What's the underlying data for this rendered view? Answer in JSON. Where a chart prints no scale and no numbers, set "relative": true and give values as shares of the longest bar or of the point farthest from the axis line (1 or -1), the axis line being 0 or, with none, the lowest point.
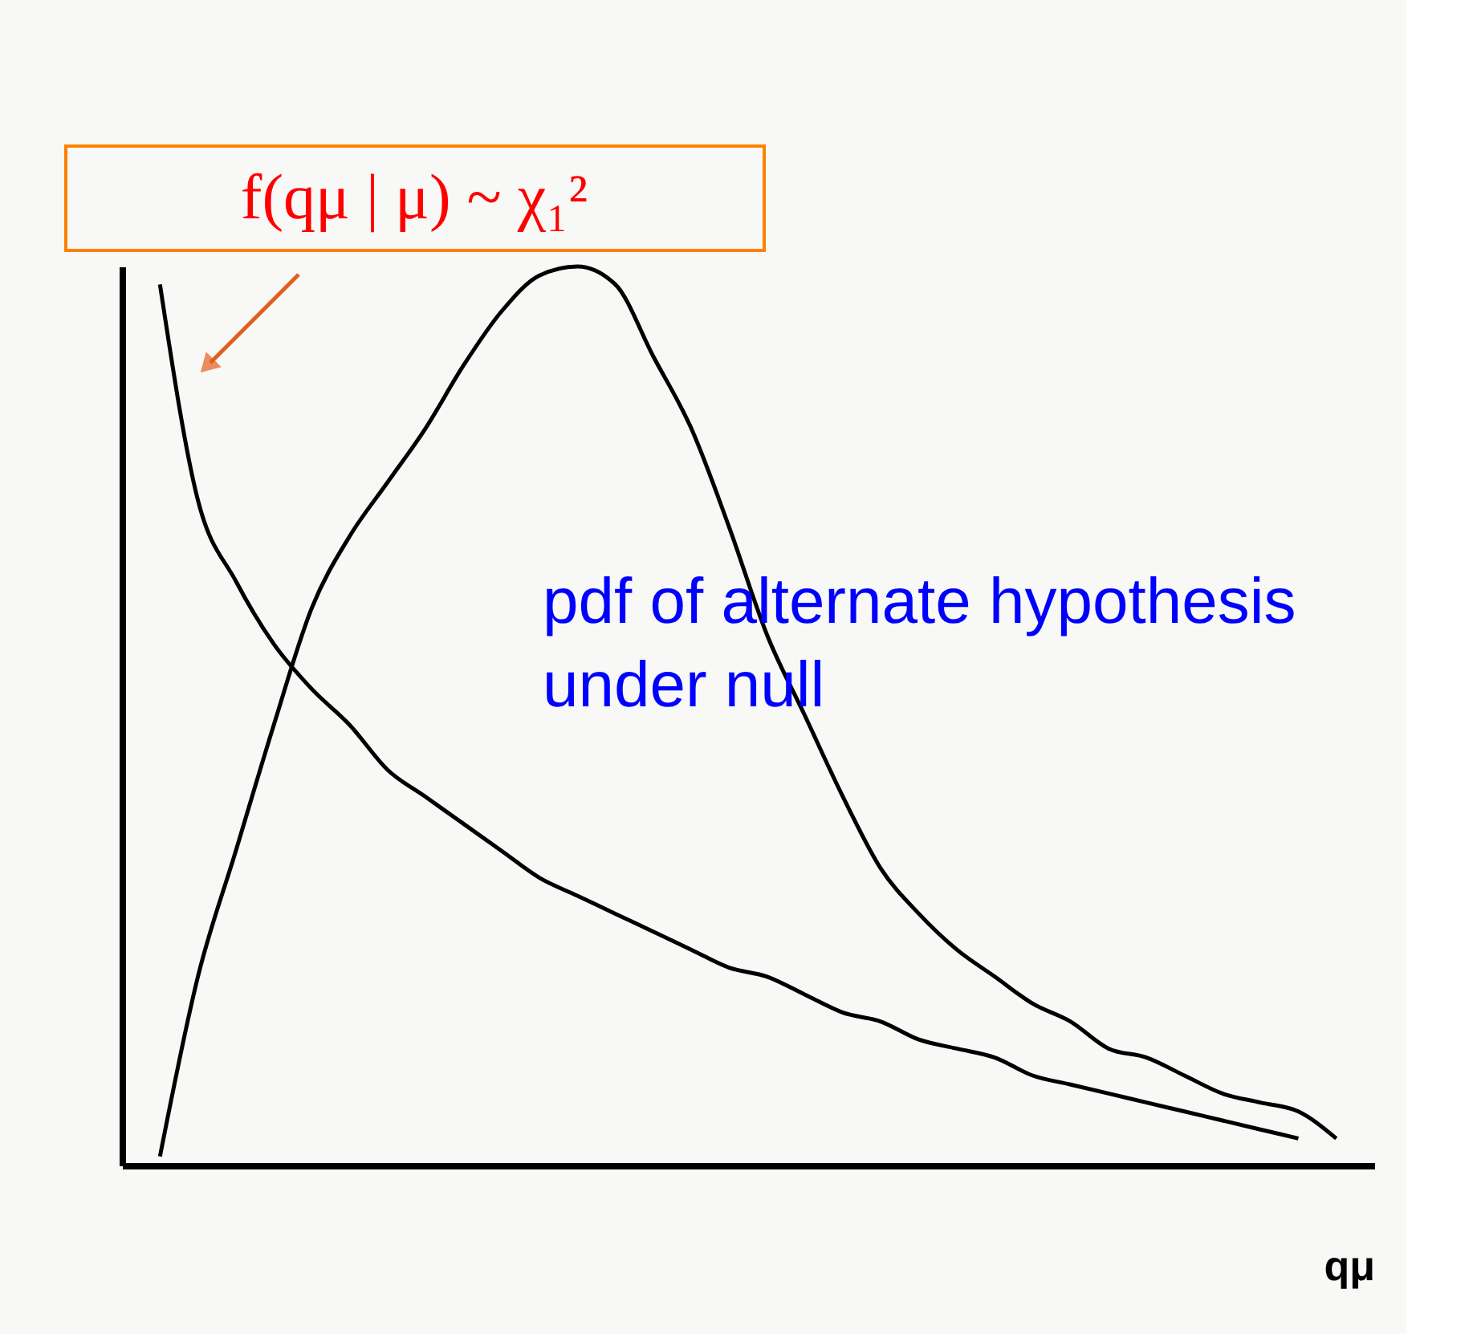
{
  "chart_data": {
    "type": "line",
    "relative": true,
    "xlabel": "qμ",
    "annotations": [
      "f(qμ | μ) ~ χ₁²",
      "pdf of alternate hypothesis",
      "under null"
    ],
    "categories": [
      null,
      null,
      null,
      null,
      null,
      null,
      null,
      null,
      null,
      null,
      null,
      null,
      null,
      null,
      null,
      null,
      null,
      null,
      null,
      null,
      null,
      null,
      null,
      null,
      null,
      null,
      null,
      null,
      null,
      null,
      null,
      null
    ],
    "series": [
      {
        "color": "#000000",
        "values": [
          0.98,
          0.74,
          0.65,
          0.58,
          0.53,
          0.49,
          0.44,
          0.41,
          0.38,
          0.35,
          0.32,
          0.3,
          0.28,
          0.26,
          0.24,
          0.22,
          0.21,
          0.19,
          0.17,
          0.16,
          0.14,
          0.13,
          0.12,
          0.1,
          0.09,
          0.08,
          0.07,
          0.06,
          0.05,
          0.04,
          0.03,
          null
        ]
      },
      {
        "color": "#000000",
        "values": [
          0.01,
          0.21,
          0.35,
          0.49,
          0.62,
          0.7,
          0.76,
          0.82,
          0.89,
          0.95,
          0.99,
          1.0,
          0.98,
          0.9,
          0.82,
          0.71,
          0.59,
          0.5,
          0.41,
          0.33,
          0.28,
          0.24,
          0.21,
          0.18,
          0.16,
          0.13,
          0.12,
          0.1,
          0.08,
          0.07,
          0.06,
          0.03
        ]
      }
    ]
  }
}
